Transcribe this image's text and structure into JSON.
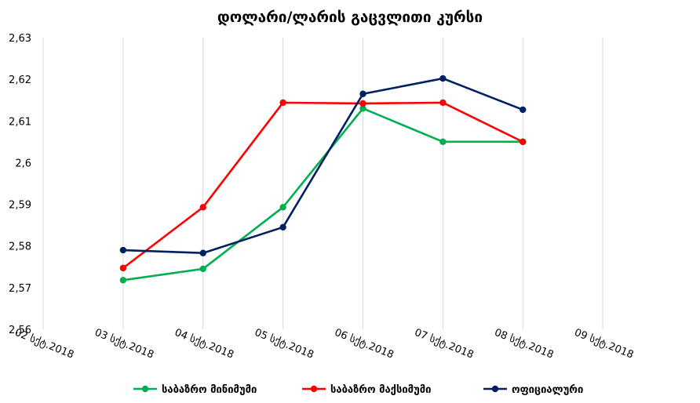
{
  "chart_data": {
    "type": "line",
    "title": "დოლარი/ლარის გაცვლითი კურსი",
    "xlabel": "",
    "ylabel": "",
    "categories": [
      "02 სქტ.2018",
      "03 სქტ.2018",
      "04 სქტ.2018",
      "05 სქტ.2018",
      "06 სქტ.2018",
      "07 სქტ.2018",
      "08 სქტ.2018",
      "09 სქტ.2018"
    ],
    "ylim": [
      2.56,
      2.63
    ],
    "yticks": [
      "2,56",
      "2,57",
      "2,58",
      "2,59",
      "2,6",
      "2,61",
      "2,62",
      "2,63"
    ],
    "grid": "vertical",
    "legend_position": "bottom",
    "series": [
      {
        "name": "საბაზრო მინიმუმი",
        "color": "#00b050",
        "values": [
          null,
          2.5718,
          2.5745,
          2.5893,
          2.613,
          2.605,
          2.605,
          null
        ]
      },
      {
        "name": "საბაზრო მაქსიმუმი",
        "color": "#ff0000",
        "values": [
          null,
          2.5747,
          2.5893,
          2.6144,
          2.6142,
          2.6144,
          2.605,
          null
        ]
      },
      {
        "name": "ოფიციალური",
        "color": "#002060",
        "values": [
          null,
          2.579,
          2.5783,
          2.5845,
          2.6165,
          2.6202,
          2.6127,
          null
        ]
      }
    ]
  }
}
